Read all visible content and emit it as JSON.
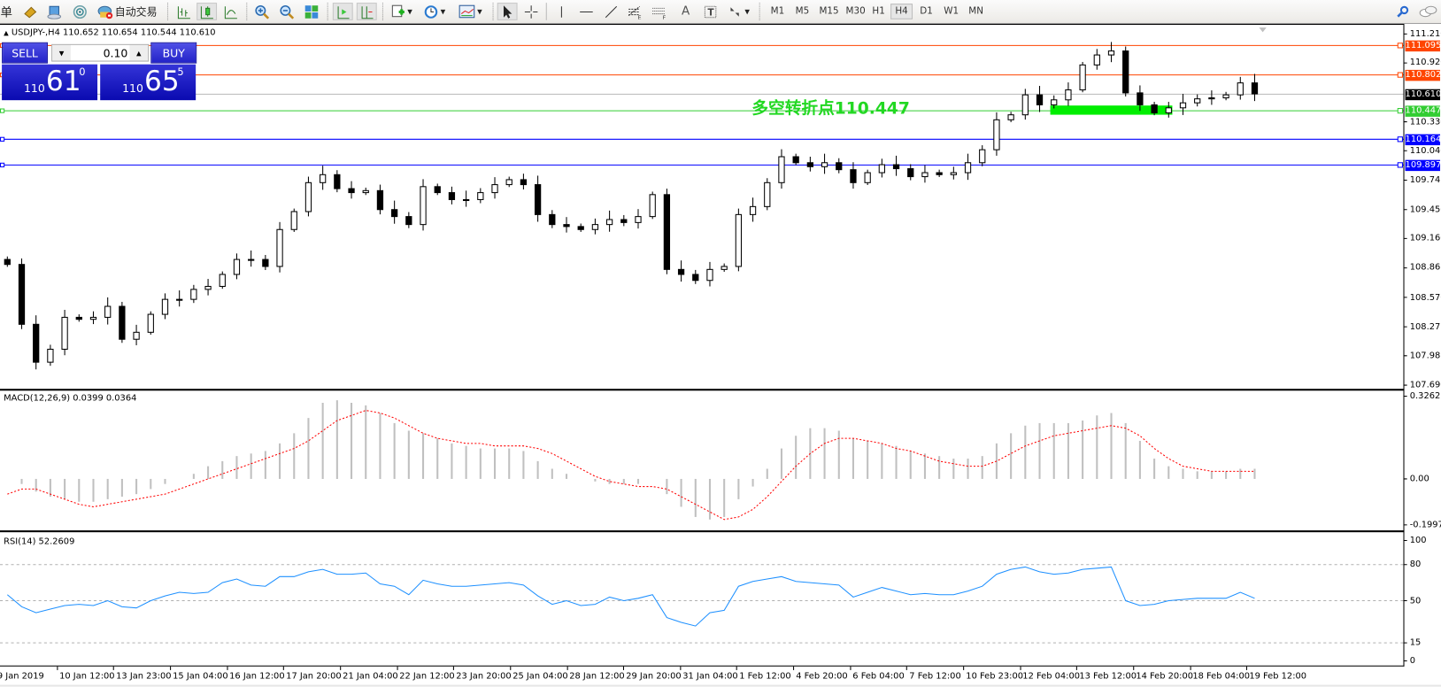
{
  "toolbar": {
    "menu_fragment": "单",
    "auto_trading_label": "自动交易",
    "timeframes": [
      "M1",
      "M5",
      "M15",
      "M30",
      "H1",
      "H4",
      "D1",
      "W1",
      "MN"
    ],
    "active_timeframe": "H4",
    "icons": [
      "new-order-icon",
      "market-watch-icon",
      "terminal-icon",
      "signals-icon",
      "auto-trading-icon",
      "bar-chart-icon",
      "candlestick-icon",
      "line-chart-icon",
      "zoom-in-icon",
      "zoom-out-icon",
      "tile-windows-icon",
      "autoscroll-icon",
      "chart-shift-icon",
      "indicators-icon",
      "periods-icon",
      "templates-icon",
      "cursor-icon",
      "crosshair-icon",
      "vertical-line-icon",
      "horizontal-line-icon",
      "trendline-icon",
      "fibonacci-icon",
      "channel-icon",
      "text-icon",
      "text-label-icon",
      "arrows-icon",
      "search-icon",
      "chat-icon"
    ]
  },
  "chart": {
    "header": "USDJPY-,H4  110.652 110.654 110.544 110.610",
    "annotation": "多空转折点110.447"
  },
  "trade_panel": {
    "sell_label": "SELL",
    "buy_label": "BUY",
    "lot_value": "0.10",
    "sell_price": {
      "prefix": "110",
      "big": "61",
      "sup": "0"
    },
    "buy_price": {
      "prefix": "110",
      "big": "65",
      "sup": "5"
    }
  },
  "price_axis": {
    "ticks": [
      "111.210",
      "110.920",
      "110.330",
      "110.040",
      "109.745",
      "109.450",
      "109.160",
      "108.865",
      "108.570",
      "108.275",
      "107.985",
      "107.690"
    ],
    "levels": [
      {
        "value": "111.095",
        "color": "#ff4500"
      },
      {
        "value": "110.802",
        "color": "#ff4500"
      },
      {
        "value": "110.610",
        "color": "#000000",
        "line_color": "#c0c0c0"
      },
      {
        "value": "110.447",
        "color": "#32cd32"
      },
      {
        "value": "110.164",
        "color": "#0000ff"
      },
      {
        "value": "109.897",
        "color": "#0000ff"
      }
    ]
  },
  "macd": {
    "label": "MACD(12,26,9) 0.0399 0.0364",
    "ticks": [
      "0.3262",
      "0.00",
      "-0.1997"
    ]
  },
  "rsi": {
    "label": "RSI(14) 52.2609",
    "ticks": [
      "100",
      "80",
      "50",
      "15",
      "0"
    ]
  },
  "time_axis": [
    "9 Jan 2019",
    "10 Jan 12:00",
    "13 Jan 23:00",
    "15 Jan 04:00",
    "16 Jan 12:00",
    "17 Jan 20:00",
    "21 Jan 04:00",
    "22 Jan 12:00",
    "23 Jan 20:00",
    "25 Jan 04:00",
    "28 Jan 12:00",
    "29 Jan 20:00",
    "31 Jan 04:00",
    "1 Feb 12:00",
    "4 Feb 20:00",
    "6 Feb 04:00",
    "7 Feb 12:00",
    "10 Feb 23:00",
    "12 Feb 04:00",
    "13 Feb 12:00",
    "14 Feb 20:00",
    "18 Feb 04:00",
    "19 Feb 12:00"
  ],
  "chart_data": {
    "type": "candlestick",
    "symbol": "USDJPY-",
    "timeframe": "H4",
    "ylim": [
      107.69,
      111.21
    ],
    "closes": [
      108.9,
      108.3,
      107.92,
      108.05,
      108.37,
      108.35,
      108.37,
      108.48,
      108.15,
      108.22,
      108.4,
      108.55,
      108.55,
      108.65,
      108.68,
      108.8,
      108.95,
      108.95,
      108.88,
      109.25,
      109.43,
      109.72,
      109.8,
      109.66,
      109.62,
      109.64,
      109.45,
      109.38,
      109.3,
      109.68,
      109.62,
      109.55,
      109.55,
      109.62,
      109.7,
      109.75,
      109.7,
      109.4,
      109.3,
      109.28,
      109.25,
      109.3,
      109.35,
      109.32,
      109.38,
      109.6,
      108.85,
      108.8,
      108.74,
      108.85,
      108.88,
      109.4,
      109.48,
      109.72,
      109.98,
      109.92,
      109.88,
      109.92,
      109.85,
      109.72,
      109.82,
      109.9,
      109.86,
      109.78,
      109.82,
      109.8,
      109.82,
      109.92,
      110.05,
      110.35,
      110.4,
      110.6,
      110.5,
      110.55,
      110.65,
      110.9,
      111.0,
      111.04,
      110.62,
      110.5,
      110.42,
      110.47,
      110.52,
      110.56,
      110.57,
      110.6,
      110.72,
      110.61
    ],
    "macd_hist": [
      0.0,
      -0.02,
      -0.05,
      -0.07,
      -0.08,
      -0.09,
      -0.09,
      -0.08,
      -0.07,
      -0.06,
      -0.04,
      -0.02,
      0.0,
      0.02,
      0.05,
      0.07,
      0.09,
      0.1,
      0.11,
      0.14,
      0.18,
      0.24,
      0.3,
      0.31,
      0.3,
      0.29,
      0.26,
      0.22,
      0.19,
      0.18,
      0.16,
      0.14,
      0.13,
      0.12,
      0.12,
      0.12,
      0.11,
      0.07,
      0.04,
      0.02,
      0.0,
      -0.01,
      -0.02,
      -0.02,
      -0.02,
      0.0,
      -0.06,
      -0.11,
      -0.15,
      -0.16,
      -0.15,
      -0.08,
      -0.03,
      0.04,
      0.12,
      0.17,
      0.2,
      0.2,
      0.19,
      0.16,
      0.15,
      0.14,
      0.13,
      0.11,
      0.1,
      0.09,
      0.08,
      0.08,
      0.09,
      0.14,
      0.18,
      0.21,
      0.22,
      0.22,
      0.22,
      0.23,
      0.25,
      0.26,
      0.22,
      0.15,
      0.08,
      0.05,
      0.04,
      0.03,
      0.03,
      0.03,
      0.04,
      0.04
    ],
    "macd_signal": [
      -0.06,
      -0.04,
      -0.04,
      -0.06,
      -0.08,
      -0.1,
      -0.11,
      -0.1,
      -0.09,
      -0.08,
      -0.07,
      -0.06,
      -0.04,
      -0.02,
      0.0,
      0.02,
      0.04,
      0.06,
      0.08,
      0.1,
      0.12,
      0.15,
      0.19,
      0.23,
      0.25,
      0.27,
      0.26,
      0.24,
      0.21,
      0.18,
      0.16,
      0.15,
      0.14,
      0.14,
      0.13,
      0.13,
      0.13,
      0.12,
      0.1,
      0.07,
      0.04,
      0.01,
      -0.01,
      -0.02,
      -0.03,
      -0.03,
      -0.04,
      -0.07,
      -0.1,
      -0.13,
      -0.16,
      -0.15,
      -0.12,
      -0.07,
      -0.01,
      0.05,
      0.1,
      0.14,
      0.16,
      0.16,
      0.15,
      0.14,
      0.12,
      0.11,
      0.09,
      0.07,
      0.06,
      0.05,
      0.05,
      0.07,
      0.1,
      0.13,
      0.15,
      0.17,
      0.18,
      0.19,
      0.2,
      0.21,
      0.2,
      0.17,
      0.12,
      0.08,
      0.05,
      0.04,
      0.03,
      0.03,
      0.03,
      0.03
    ],
    "macd_range": [
      -0.1997,
      0.3262
    ],
    "rsi": [
      55,
      45,
      40,
      43,
      46,
      47,
      46,
      50,
      45,
      44,
      50,
      54,
      57,
      56,
      57,
      65,
      68,
      63,
      62,
      70,
      70,
      74,
      76,
      72,
      72,
      73,
      64,
      62,
      55,
      67,
      64,
      62,
      62,
      63,
      64,
      65,
      63,
      54,
      47,
      50,
      46,
      47,
      53,
      50,
      52,
      55,
      36,
      32,
      29,
      40,
      42,
      62,
      66,
      68,
      70,
      66,
      65,
      64,
      63,
      53,
      57,
      61,
      58,
      55,
      56,
      55,
      55,
      58,
      62,
      72,
      76,
      78,
      74,
      72,
      73,
      76,
      77,
      78,
      50,
      46,
      47,
      50,
      51,
      52,
      52,
      52,
      57,
      52
    ],
    "rsi_levels": [
      80,
      50,
      15
    ],
    "highlight_zone": {
      "from_index": 73,
      "to_index": 81,
      "price": 110.447,
      "color": "#00ee00"
    }
  }
}
